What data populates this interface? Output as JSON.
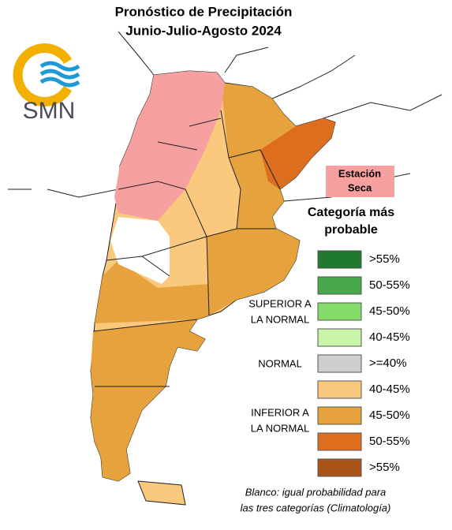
{
  "header": {
    "title": "Pronóstico de Precipitación",
    "subtitle": "Junio-Julio-Agosto 2024"
  },
  "logo": {
    "text": "SMN"
  },
  "dry_season": {
    "lines": [
      "Estación",
      "Seca"
    ]
  },
  "legend": {
    "title_lines": [
      "Categoría más",
      "probable"
    ],
    "groups": [
      {
        "lines": [
          "SUPERIOR A",
          "LA NORMAL"
        ]
      },
      {
        "lines": [
          "NORMAL"
        ]
      },
      {
        "lines": [
          "INFERIOR A",
          "LA NORMAL"
        ]
      }
    ],
    "items": [
      {
        "label": ">55%",
        "color": "#1f7a2f"
      },
      {
        "label": "50-55%",
        "color": "#48a84c"
      },
      {
        "label": "45-50%",
        "color": "#86dc6a"
      },
      {
        "label": "40-45%",
        "color": "#c8f5a8"
      },
      {
        "label": ">=40%",
        "color": "#cfcfcf"
      },
      {
        "label": "40-45%",
        "color": "#fbc97d"
      },
      {
        "label": "45-50%",
        "color": "#e6a23c"
      },
      {
        "label": "50-55%",
        "color": "#dc6e1e"
      },
      {
        "label": ">55%",
        "color": "#a95418"
      }
    ]
  },
  "note": {
    "lines": [
      "Blanco: igual probabilidad para",
      "las tres categorías (Climatología)"
    ]
  }
}
